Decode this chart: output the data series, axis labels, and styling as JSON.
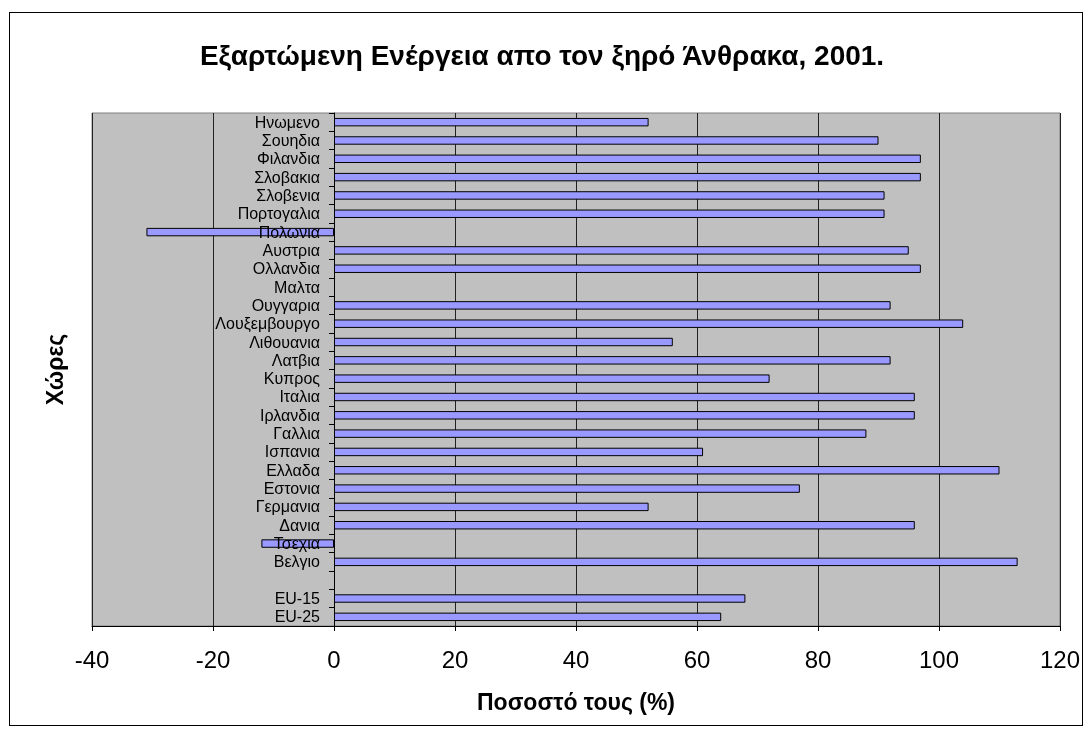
{
  "chart_data": {
    "type": "bar",
    "orientation": "horizontal",
    "title": "Εξαρτώμενη Ενέργεια απο τον ξηρό Άνθρακα, 2001.",
    "xlabel": "Ποσοστό τους (%)",
    "ylabel": "Χώρες",
    "categories": [
      "Ηνωμενο",
      "Σουηδια",
      "Φιλανδια",
      "Σλοβακια",
      "Σλοβενια",
      "Πορτογαλια",
      "Πολωνια",
      "Αυστρια",
      "Ολλανδια",
      "Μαλτα",
      "Ουγγαρια",
      "Λουξεμβουργο",
      "Λιθουανια",
      "Λατβια",
      "Κυπρος",
      "Ιταλια",
      "Ιρλανδια",
      "Γαλλια",
      "Ισπανια",
      "Ελλαδα",
      "Εστονια",
      "Γερμανια",
      "Δανια",
      "Τσεχια",
      "Βελγιο",
      null,
      "EU-15",
      "EU-25"
    ],
    "values": [
      52,
      90,
      97,
      97,
      91,
      91,
      -31,
      95,
      97,
      null,
      92,
      104,
      56,
      92,
      72,
      96,
      96,
      88,
      61,
      110,
      77,
      52,
      96,
      -12,
      113,
      null,
      68,
      64
    ],
    "color": "#9999ff",
    "xlim": [
      -40,
      120
    ],
    "xticks": [
      -40,
      -20,
      0,
      20,
      40,
      60,
      80,
      100,
      120
    ],
    "grid": "x"
  }
}
